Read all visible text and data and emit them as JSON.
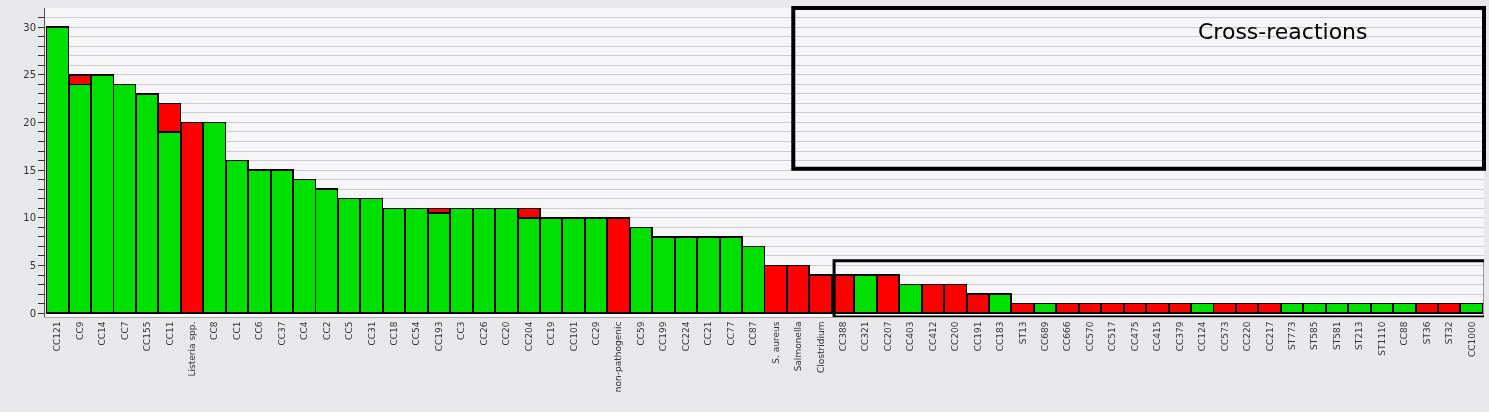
{
  "chart_data": {
    "type": "bar",
    "stacked": true,
    "grid": "y",
    "categories": [
      "CC121",
      "CC9",
      "CC14",
      "CC7",
      "CC155",
      "CC11",
      "Listeria spp.",
      "CC8",
      "CC1",
      "CC6",
      "CC37",
      "CC4",
      "CC2",
      "CC5",
      "CC31",
      "CC18",
      "CC54",
      "CC193",
      "CC3",
      "CC26",
      "CC20",
      "CC204",
      "CC19",
      "CC101",
      "CC29",
      "non-pathogenic",
      "CC59",
      "CC199",
      "CC224",
      "CC21",
      "CC77",
      "CC87",
      "S. aureus",
      "Salmonella",
      "Clostridium",
      "CC388",
      "CC321",
      "CC207",
      "CC403",
      "CC412",
      "CC200",
      "CC191",
      "CC183",
      "ST13",
      "CC689",
      "CC666",
      "CC570",
      "CC517",
      "CC475",
      "CC415",
      "CC379",
      "CC124",
      "CC573",
      "CC220",
      "CC217",
      "ST773",
      "ST585",
      "ST581",
      "ST213",
      "ST1110",
      "CC88",
      "ST36",
      "ST32",
      "CC1000"
    ],
    "series": [
      {
        "color": "#00e000",
        "values": [
          30,
          24,
          25,
          24,
          23,
          19,
          null,
          20,
          16,
          15,
          15,
          14,
          13,
          12,
          12,
          11,
          11,
          10.5,
          11,
          11,
          11,
          10,
          10,
          10,
          10,
          null,
          9,
          8,
          8,
          8,
          8,
          7,
          null,
          null,
          null,
          null,
          4,
          null,
          3,
          null,
          null,
          null,
          2,
          null,
          1,
          null,
          null,
          null,
          null,
          null,
          null,
          1,
          null,
          null,
          null,
          1,
          1,
          1,
          1,
          1,
          1,
          null,
          null,
          1
        ]
      },
      {
        "color": "#ff0000",
        "values": [
          null,
          1,
          null,
          null,
          null,
          3,
          20,
          null,
          null,
          null,
          null,
          null,
          null,
          null,
          null,
          null,
          null,
          0.5,
          null,
          null,
          null,
          1,
          null,
          null,
          null,
          10,
          null,
          null,
          null,
          null,
          null,
          null,
          5,
          5,
          4,
          4,
          null,
          4,
          null,
          3,
          3,
          2,
          null,
          1,
          null,
          1,
          1,
          1,
          1,
          1,
          1,
          null,
          1,
          1,
          1,
          null,
          null,
          null,
          null,
          null,
          null,
          1,
          1,
          null
        ]
      }
    ],
    "ylim": [
      -0.4,
      32
    ],
    "yticks": [
      0,
      {
        "value": 1,
        "label": null
      },
      {
        "value": 2,
        "label": null
      },
      {
        "value": 3,
        "label": null
      },
      {
        "value": 4,
        "label": null
      },
      5,
      {
        "value": 6,
        "label": null
      },
      {
        "value": 7,
        "label": null
      },
      {
        "value": 8,
        "label": null
      },
      {
        "value": 9,
        "label": null
      },
      10,
      {
        "value": 11,
        "label": null
      },
      {
        "value": 12,
        "label": null
      },
      {
        "value": 13,
        "label": null
      },
      {
        "value": 14,
        "label": null
      },
      15,
      {
        "value": 16,
        "label": null
      },
      {
        "value": 17,
        "label": null
      },
      {
        "value": 18,
        "label": null
      },
      {
        "value": 19,
        "label": null
      },
      20,
      {
        "value": 21,
        "label": null
      },
      {
        "value": 22,
        "label": null
      },
      {
        "value": 23,
        "label": null
      },
      {
        "value": 24,
        "label": null
      },
      25,
      {
        "value": 26,
        "label": null
      },
      {
        "value": 27,
        "label": null
      },
      {
        "value": 28,
        "label": null
      },
      {
        "value": 29,
        "label": null
      },
      30,
      {
        "value": 31,
        "label": null
      }
    ],
    "annotations": [
      "Cross-reactions"
    ]
  }
}
